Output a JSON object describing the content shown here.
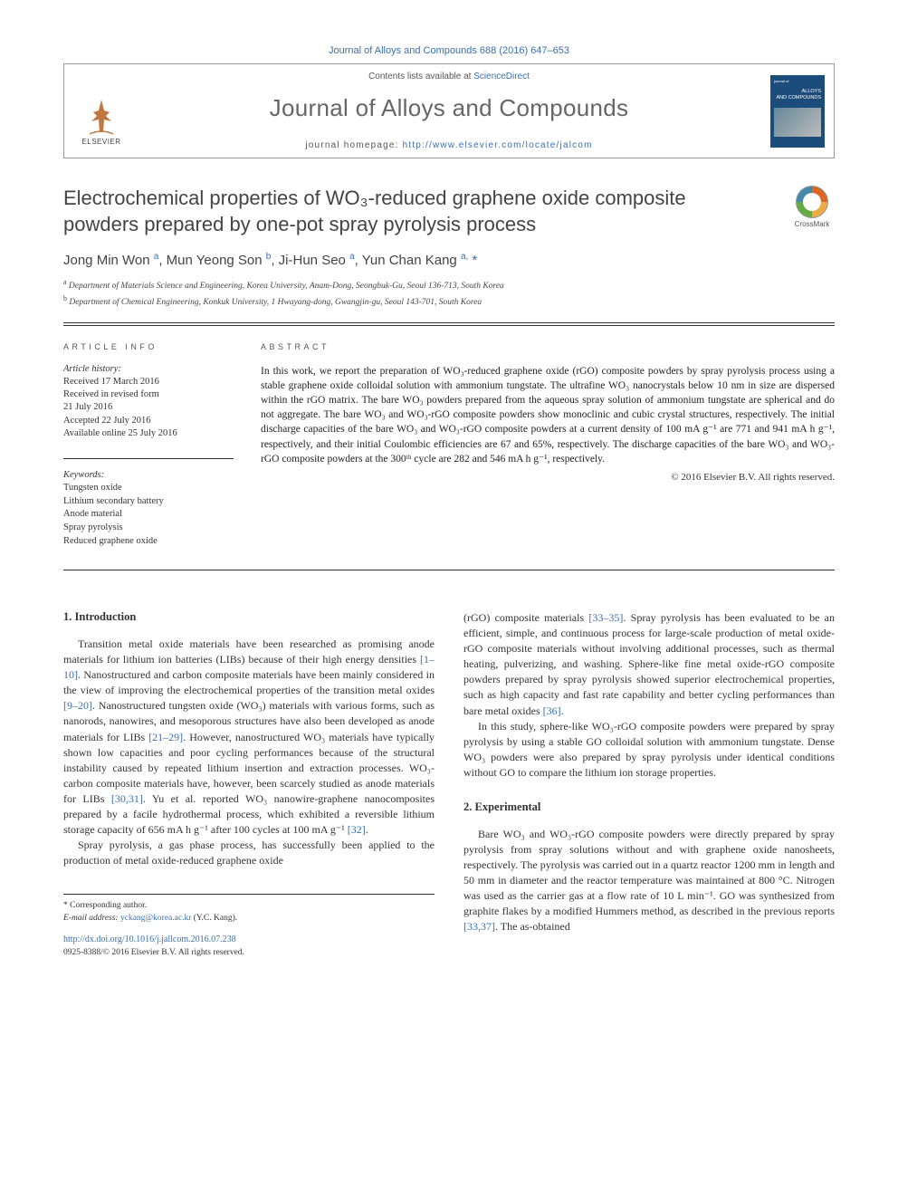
{
  "journal_ref": "Journal of Alloys and Compounds 688 (2016) 647–653",
  "header": {
    "contents_prefix": "Contents lists available at ",
    "contents_link": "ScienceDirect",
    "journal_name": "Journal of Alloys and Compounds",
    "homepage_prefix": "journal homepage: ",
    "homepage_link": "http://www.elsevier.com/locate/jalcom",
    "publisher_name": "ELSEVIER",
    "cover_top": "journal of",
    "cover_mid1": "ALLOYS",
    "cover_mid2": "AND COMPOUNDS"
  },
  "title": "Electrochemical properties of WO₃-reduced graphene oxide composite powders prepared by one-pot spray pyrolysis process",
  "crossmark_label": "CrossMark",
  "authors_html": "Jong Min Won <sup>a</sup>, Mun Yeong Son <sup>b</sup>, Ji-Hun Seo <sup>a</sup>, Yun Chan Kang <sup>a,</sup> <span class='corr'>*</span>",
  "affiliations": [
    {
      "sup": "a",
      "text": "Department of Materials Science and Engineering, Korea University, Anam-Dong, Seongbuk-Gu, Seoul 136-713, South Korea"
    },
    {
      "sup": "b",
      "text": "Department of Chemical Engineering, Konkuk University, 1 Hwayang-dong, Gwangjin-gu, Seoul 143-701, South Korea"
    }
  ],
  "article_info_head": "ARTICLE INFO",
  "abstract_head": "ABSTRACT",
  "history_label": "Article history:",
  "history": [
    "Received 17 March 2016",
    "Received in revised form",
    "21 July 2016",
    "Accepted 22 July 2016",
    "Available online 25 July 2016"
  ],
  "keywords_label": "Keywords:",
  "keywords": [
    "Tungsten oxide",
    "Lithium secondary battery",
    "Anode material",
    "Spray pyrolysis",
    "Reduced graphene oxide"
  ],
  "abstract": "In this work, we report the preparation of WO₃-reduced graphene oxide (rGO) composite powders by spray pyrolysis process using a stable graphene oxide colloidal solution with ammonium tungstate. The ultrafine WO₃ nanocrystals below 10 nm in size are dispersed within the rGO matrix. The bare WO₃ powders prepared from the aqueous spray solution of ammonium tungstate are spherical and do not aggregate. The bare WO₃ and WO₃-rGO composite powders show monoclinic and cubic crystal structures, respectively. The initial discharge capacities of the bare WO₃ and WO₃-rGO composite powders at a current density of 100 mA g⁻¹ are 771 and 941 mA h g⁻¹, respectively, and their initial Coulombic efficiencies are 67 and 65%, respectively. The discharge capacities of the bare WO₃ and WO₃-rGO composite powders at the 300ᵗʰ cycle are 282 and 546 mA h g⁻¹, respectively.",
  "copyright": "© 2016 Elsevier B.V. All rights reserved.",
  "sections": {
    "s1_head": "1. Introduction",
    "s1_p1": "Transition metal oxide materials have been researched as promising anode materials for lithium ion batteries (LIBs) because of their high energy densities [1–10]. Nanostructured and carbon composite materials have been mainly considered in the view of improving the electrochemical properties of the transition metal oxides [9–20]. Nanostructured tungsten oxide (WO₃) materials with various forms, such as nanorods, nanowires, and mesoporous structures have also been developed as anode materials for LIBs [21–29]. However, nanostructured WO₃ materials have typically shown low capacities and poor cycling performances because of the structural instability caused by repeated lithium insertion and extraction processes. WO₃-carbon composite materials have, however, been scarcely studied as anode materials for LIBs [30,31]. Yu et al. reported WO₃ nanowire-graphene nanocomposites prepared by a facile hydrothermal process, which exhibited a reversible lithium storage capacity of 656 mA h g⁻¹ after 100 cycles at 100 mA g⁻¹ [32].",
    "s1_p2": "Spray pyrolysis, a gas phase process, has successfully been applied to the production of metal oxide-reduced graphene oxide",
    "s1_p3": "(rGO) composite materials [33–35]. Spray pyrolysis has been evaluated to be an efficient, simple, and continuous process for large-scale production of metal oxide-rGO composite materials without involving additional processes, such as thermal heating, pulverizing, and washing. Sphere-like fine metal oxide-rGO composite powders prepared by spray pyrolysis showed superior electrochemical properties, such as high capacity and fast rate capability and better cycling performances than bare metal oxides [36].",
    "s1_p4": "In this study, sphere-like WO₃-rGO composite powders were prepared by spray pyrolysis by using a stable GO colloidal solution with ammonium tungstate. Dense WO₃ powders were also prepared by spray pyrolysis under identical conditions without GO to compare the lithium ion storage properties.",
    "s2_head": "2. Experimental",
    "s2_p1": "Bare WO₃ and WO₃-rGO composite powders were directly prepared by spray pyrolysis from spray solutions without and with graphene oxide nanosheets, respectively. The pyrolysis was carried out in a quartz reactor 1200 mm in length and 50 mm in diameter and the reactor temperature was maintained at 800 °C. Nitrogen was used as the carrier gas at a flow rate of 10 L min⁻¹. GO was synthesized from graphite flakes by a modified Hummers method, as described in the previous reports [33,37]. The as-obtained"
  },
  "refs_inline": {
    "r1_10": "[1–10]",
    "r9_20": "[9–20]",
    "r21_29": "[21–29]",
    "r30_31": "[30,31]",
    "r32": "[32]",
    "r33_35": "[33–35]",
    "r36": "[36]",
    "r33_37": "[33,37]"
  },
  "footer": {
    "corr_label": "* Corresponding author.",
    "email_label": "E-mail address:",
    "email": "yckang@korea.ac.kr",
    "email_suffix": "(Y.C. Kang).",
    "doi": "http://dx.doi.org/10.1016/j.jallcom.2016.07.238",
    "issn": "0925-8388/© 2016 Elsevier B.V. All rights reserved."
  },
  "colors": {
    "link": "#3a6fb0",
    "text": "#333333",
    "title": "#444444",
    "rule": "#333333"
  }
}
